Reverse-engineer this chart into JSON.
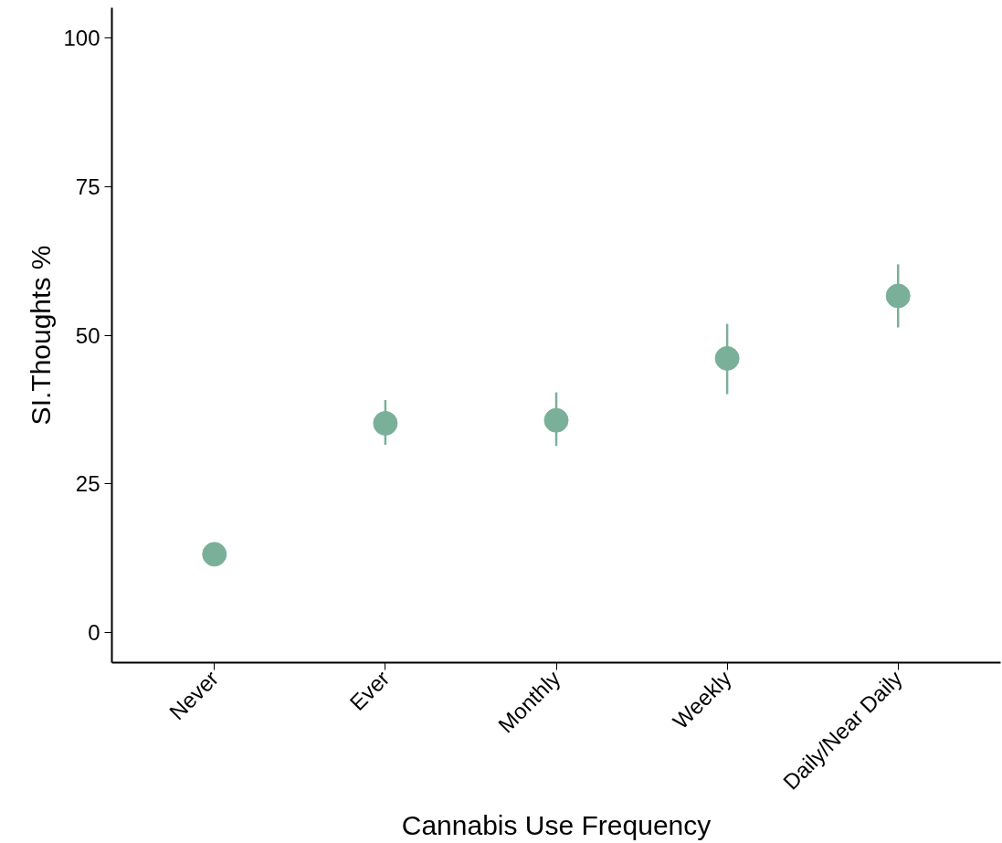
{
  "chart_data": {
    "type": "scatter",
    "xlabel": "Cannabis Use Frequency",
    "ylabel": "SI.Thoughts %",
    "categories": [
      "Never",
      "Ever",
      "Monthly",
      "Weekly",
      "Daily/Near Daily"
    ],
    "series": [
      {
        "color": "#7ab09a",
        "values": [
          13.2,
          35.2,
          35.7,
          46.1,
          56.6
        ],
        "errors": [
          null,
          [
            31.6,
            39.1
          ],
          [
            31.4,
            40.4
          ],
          [
            40.1,
            51.9
          ],
          [
            51.3,
            61.9
          ]
        ]
      }
    ],
    "ylim": [
      -5,
      105
    ],
    "yticks": [
      0,
      25,
      50,
      75,
      100
    ],
    "grid": false,
    "marker": "circle"
  }
}
